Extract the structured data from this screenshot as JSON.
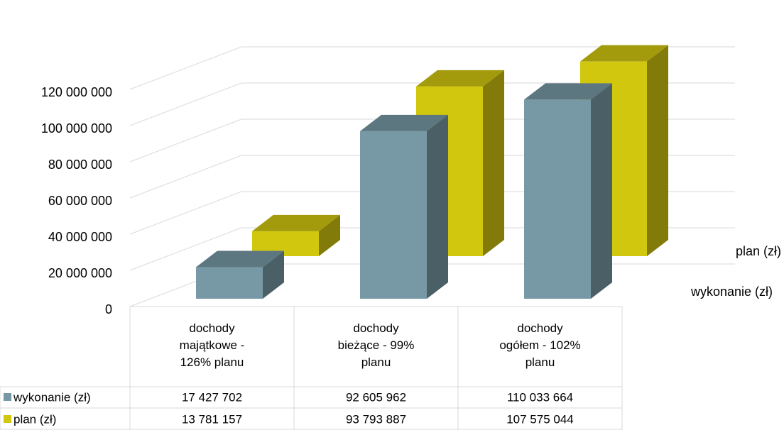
{
  "chart_data": {
    "type": "bar3d",
    "categories": [
      "dochody majątkowe - 126% planu",
      "dochody bieżące - 99% planu",
      "dochody ogółem - 102% planu"
    ],
    "series": [
      {
        "name": "wykonanie (zł)",
        "color": "#7799a5",
        "values": [
          17427702,
          92605962,
          110033664
        ],
        "value_labels": [
          "17 427 702",
          "92 605 962",
          "110 033 664"
        ]
      },
      {
        "name": "plan (zł)",
        "color": "#d1c70f",
        "values": [
          13781157,
          93793887,
          107575044
        ],
        "value_labels": [
          "13 781 157",
          "93 793 887",
          "107 575 044"
        ]
      }
    ],
    "ylim": [
      0,
      160000000
    ],
    "yticks": [
      0,
      {
        "value": 20000000,
        "label": "20 000 000"
      },
      {
        "value": 40000000,
        "label": "40 000 000"
      },
      {
        "value": 60000000,
        "label": "60 000 000"
      },
      {
        "value": 80000000,
        "label": "80 000 000"
      },
      {
        "value": 100000000,
        "label": "100 000 000"
      },
      {
        "value": 120000000,
        "label": "120 000 000"
      }
    ],
    "grid": true
  }
}
